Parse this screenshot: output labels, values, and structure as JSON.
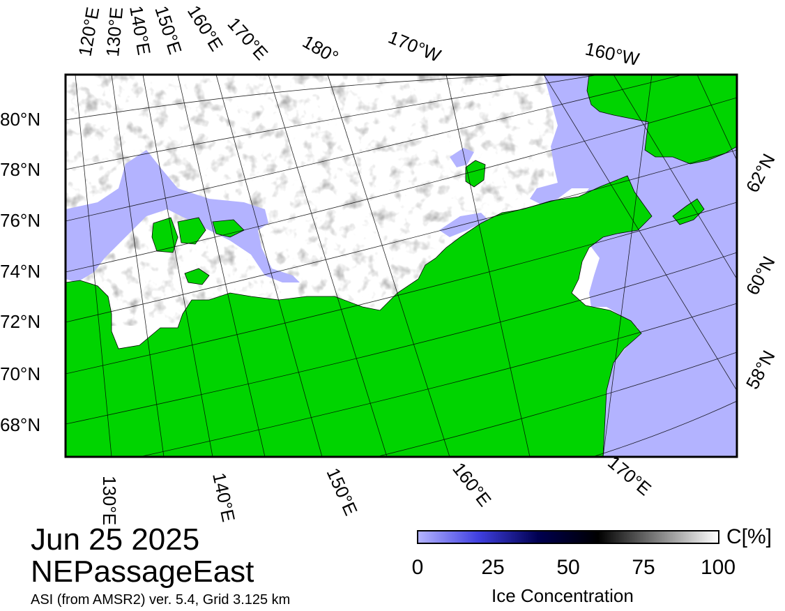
{
  "title": {
    "date": "Jun 25 2025",
    "region": "NEPassageEast",
    "source": "ASI (from AMSR2) ver. 5.4,  Grid 3.125 km"
  },
  "map": {
    "colors": {
      "land": "#00d400",
      "open_water": "#b3b3ff",
      "ice_high": "#ffffff",
      "frame": "#000000"
    },
    "labels_top_lon": [
      "120°E",
      "130°E",
      "140°E",
      "150°E",
      "160°E",
      "170°E",
      "180°",
      "170°W",
      "160°W"
    ],
    "labels_left_lat": [
      "80°N",
      "78°N",
      "76°N",
      "74°N",
      "72°N",
      "70°N",
      "68°N"
    ],
    "labels_right_lat": [
      "62°N",
      "60°N",
      "58°N"
    ],
    "labels_bottom_lon": [
      "130°E",
      "140°E",
      "150°E",
      "160°E",
      "170°E"
    ]
  },
  "colorbar": {
    "title": "Ice Concentration",
    "unit": "C[%]",
    "ticks": [
      "0",
      "25",
      "50",
      "75",
      "100"
    ],
    "range": [
      0,
      100
    ],
    "gradient": [
      "#b3b3ff",
      "#4040e0",
      "#000050",
      "#000000",
      "#808080",
      "#ffffff"
    ]
  }
}
